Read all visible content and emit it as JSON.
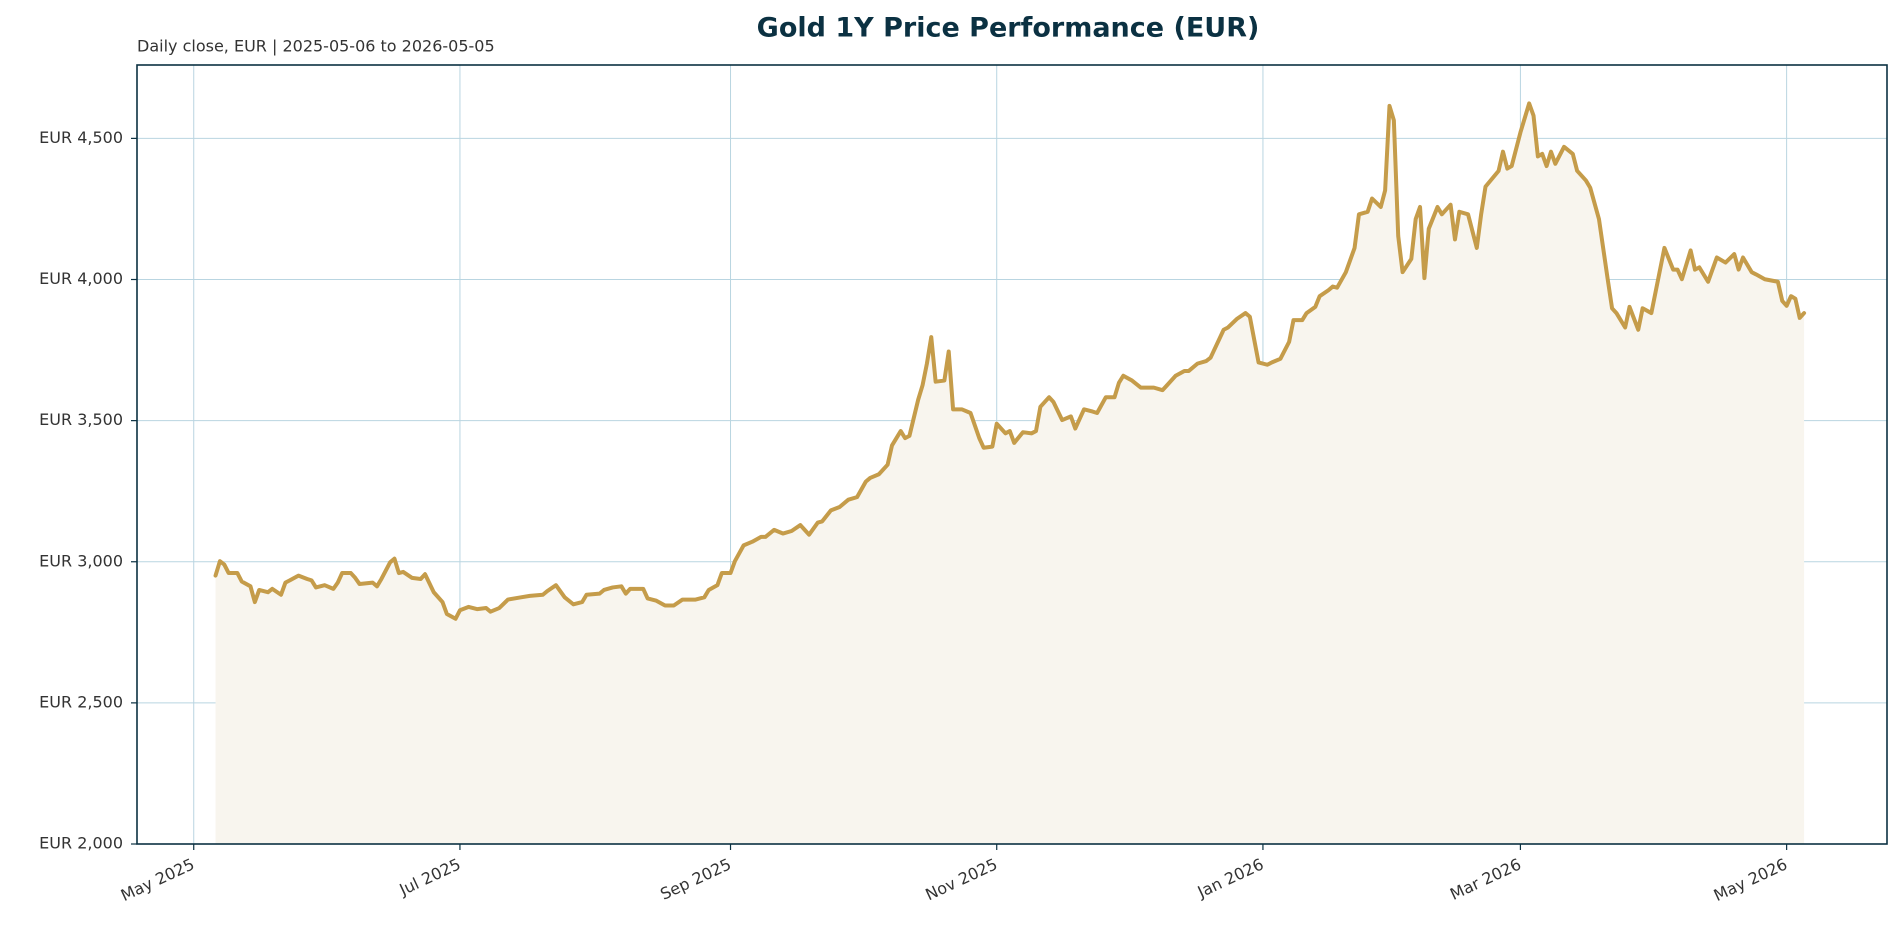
{
  "chart_data": {
    "type": "line",
    "title": "Gold 1Y Price Performance (EUR)",
    "subtitle": "Daily close, EUR | 2025-05-06 to 2026-05-05",
    "x": [
      "2025-05-06",
      "2025-05-07",
      "2025-05-08",
      "2025-05-09",
      "2025-05-11",
      "2025-05-12",
      "2025-05-14",
      "2025-05-15",
      "2025-05-16",
      "2025-05-18",
      "2025-05-19",
      "2025-05-21",
      "2025-05-22",
      "2025-05-23",
      "2025-05-25",
      "2025-05-27",
      "2025-05-28",
      "2025-05-29",
      "2025-05-31",
      "2025-06-02",
      "2025-06-03",
      "2025-06-04",
      "2025-06-06",
      "2025-06-07",
      "2025-06-08",
      "2025-06-11",
      "2025-06-12",
      "2025-06-13",
      "2025-06-15",
      "2025-06-16",
      "2025-06-17",
      "2025-06-18",
      "2025-06-20",
      "2025-06-22",
      "2025-06-23",
      "2025-06-25",
      "2025-06-27",
      "2025-06-28",
      "2025-06-30",
      "2025-07-01",
      "2025-07-03",
      "2025-07-05",
      "2025-07-07",
      "2025-07-08",
      "2025-07-10",
      "2025-07-12",
      "2025-07-15",
      "2025-07-17",
      "2025-07-20",
      "2025-07-21",
      "2025-07-23",
      "2025-07-25",
      "2025-07-27",
      "2025-07-29",
      "2025-07-30",
      "2025-08-02",
      "2025-08-03",
      "2025-08-05",
      "2025-08-07",
      "2025-08-08",
      "2025-08-09",
      "2025-08-12",
      "2025-08-13",
      "2025-08-15",
      "2025-08-17",
      "2025-08-19",
      "2025-08-21",
      "2025-08-24",
      "2025-08-26",
      "2025-08-27",
      "2025-08-29",
      "2025-08-30",
      "2025-09-01",
      "2025-09-02",
      "2025-09-04",
      "2025-09-06",
      "2025-09-08",
      "2025-09-09",
      "2025-09-11",
      "2025-09-13",
      "2025-09-15",
      "2025-09-17",
      "2025-09-18",
      "2025-09-19",
      "2025-09-21",
      "2025-09-22",
      "2025-09-24",
      "2025-09-26",
      "2025-09-28",
      "2025-09-30",
      "2025-10-02",
      "2025-10-03",
      "2025-10-05",
      "2025-10-07",
      "2025-10-08",
      "2025-10-10",
      "2025-10-11",
      "2025-10-12",
      "2025-10-14",
      "2025-10-15",
      "2025-10-16",
      "2025-10-17",
      "2025-10-18",
      "2025-10-20",
      "2025-10-21",
      "2025-10-22",
      "2025-10-24",
      "2025-10-26",
      "2025-10-28",
      "2025-10-29",
      "2025-10-31",
      "2025-11-01",
      "2025-11-03",
      "2025-11-04",
      "2025-11-05",
      "2025-11-07",
      "2025-11-09",
      "2025-11-10",
      "2025-11-11",
      "2025-11-13",
      "2025-11-14",
      "2025-11-16",
      "2025-11-18",
      "2025-11-19",
      "2025-11-21",
      "2025-11-23",
      "2025-11-24",
      "2025-11-26",
      "2025-11-28",
      "2025-11-29",
      "2025-11-30",
      "2025-12-02",
      "2025-12-04",
      "2025-12-05",
      "2025-12-07",
      "2025-12-09",
      "2025-12-10",
      "2025-12-12",
      "2025-12-14",
      "2025-12-15",
      "2025-12-17",
      "2025-12-19",
      "2025-12-20",
      "2025-12-23",
      "2025-12-24",
      "2025-12-26",
      "2025-12-28",
      "2025-12-29",
      "2025-12-31",
      "2026-01-02",
      "2026-01-03",
      "2026-01-05",
      "2026-01-07",
      "2026-01-08",
      "2026-01-10",
      "2026-01-11",
      "2026-01-13",
      "2026-01-14",
      "2026-01-16",
      "2026-01-17",
      "2026-01-18",
      "2026-01-20",
      "2026-01-22",
      "2026-01-23",
      "2026-01-25",
      "2026-01-26",
      "2026-01-28",
      "2026-01-29",
      "2026-01-30",
      "2026-01-31",
      "2026-02-01",
      "2026-02-02",
      "2026-02-04",
      "2026-02-05",
      "2026-02-06",
      "2026-02-07",
      "2026-02-08",
      "2026-02-10",
      "2026-02-11",
      "2026-02-13",
      "2026-02-14",
      "2026-02-15",
      "2026-02-17",
      "2026-02-19",
      "2026-02-20",
      "2026-02-21",
      "2026-02-24",
      "2026-02-25",
      "2026-02-26",
      "2026-02-27",
      "2026-03-01",
      "2026-03-03",
      "2026-03-04",
      "2026-03-05",
      "2026-03-06",
      "2026-03-07",
      "2026-03-08",
      "2026-03-09",
      "2026-03-11",
      "2026-03-13",
      "2026-03-14",
      "2026-03-16",
      "2026-03-17",
      "2026-03-19",
      "2026-03-21",
      "2026-03-22",
      "2026-03-23",
      "2026-03-25",
      "2026-03-26",
      "2026-03-28",
      "2026-03-29",
      "2026-03-31",
      "2026-04-01",
      "2026-04-03",
      "2026-04-05",
      "2026-04-06",
      "2026-04-07",
      "2026-04-09",
      "2026-04-10",
      "2026-04-11",
      "2026-04-13",
      "2026-04-15",
      "2026-04-17",
      "2026-04-19",
      "2026-04-20",
      "2026-04-21",
      "2026-04-23",
      "2026-04-24",
      "2026-04-26",
      "2026-04-29",
      "2026-04-30",
      "2026-05-01",
      "2026-05-02",
      "2026-05-03",
      "2026-05-04",
      "2026-05-05"
    ],
    "values": [
      2951,
      3002,
      2990,
      2960,
      2960,
      2930,
      2913,
      2857,
      2900,
      2892,
      2904,
      2883,
      2926,
      2934,
      2951,
      2939,
      2934,
      2909,
      2917,
      2904,
      2926,
      2960,
      2960,
      2943,
      2921,
      2926,
      2913,
      2939,
      2998,
      3011,
      2960,
      2964,
      2943,
      2939,
      2956,
      2892,
      2857,
      2815,
      2798,
      2828,
      2840,
      2832,
      2836,
      2823,
      2836,
      2866,
      2874,
      2879,
      2883,
      2896,
      2917,
      2874,
      2849,
      2857,
      2883,
      2887,
      2900,
      2909,
      2913,
      2887,
      2904,
      2904,
      2870,
      2862,
      2845,
      2845,
      2866,
      2866,
      2874,
      2900,
      2917,
      2960,
      2960,
      3002,
      3058,
      3071,
      3088,
      3088,
      3113,
      3100,
      3109,
      3130,
      3113,
      3096,
      3139,
      3143,
      3182,
      3194,
      3220,
      3229,
      3284,
      3297,
      3310,
      3344,
      3412,
      3463,
      3438,
      3446,
      3574,
      3625,
      3702,
      3796,
      3638,
      3642,
      3745,
      3540,
      3540,
      3527,
      3438,
      3404,
      3408,
      3489,
      3455,
      3463,
      3421,
      3459,
      3455,
      3463,
      3549,
      3583,
      3566,
      3502,
      3515,
      3472,
      3540,
      3532,
      3527,
      3583,
      3583,
      3634,
      3659,
      3642,
      3617,
      3617,
      3617,
      3608,
      3625,
      3659,
      3676,
      3676,
      3702,
      3711,
      3723,
      3822,
      3830,
      3860,
      3881,
      3868,
      3706,
      3698,
      3706,
      3719,
      3779,
      3856,
      3856,
      3881,
      3903,
      3941,
      3962,
      3975,
      3971,
      4026,
      4112,
      4231,
      4240,
      4287,
      4257,
      4316,
      4615,
      4564,
      4154,
      4026,
      4073,
      4214,
      4257,
      4005,
      4180,
      4257,
      4231,
      4265,
      4142,
      4240,
      4231,
      4112,
      4231,
      4329,
      4385,
      4453,
      4393,
      4402,
      4521,
      4624,
      4581,
      4436,
      4445,
      4402,
      4453,
      4410,
      4470,
      4445,
      4385,
      4351,
      4325,
      4214,
      4001,
      3898,
      3881,
      3830,
      3903,
      3822,
      3898,
      3881,
      3958,
      4112,
      4035,
      4035,
      4001,
      4103,
      4035,
      4043,
      3992,
      4078,
      4060,
      4090,
      4035,
      4078,
      4026,
      4018,
      4001,
      3992,
      3924,
      3907,
      3941,
      3932,
      3864,
      3881
    ],
    "color": "#c59c4a",
    "fill_color": "#f8f5ee",
    "grid": true,
    "xlim": [
      "2025-04-18",
      "2026-05-24"
    ],
    "xticks": [
      {
        "value": "2025-05-01",
        "label": "May 2025"
      },
      {
        "value": "2025-07-01",
        "label": "Jul 2025"
      },
      {
        "value": "2025-09-01",
        "label": "Sep 2025"
      },
      {
        "value": "2025-11-01",
        "label": "Nov 2025"
      },
      {
        "value": "2026-01-01",
        "label": "Jan 2026"
      },
      {
        "value": "2026-03-01",
        "label": "Mar 2026"
      },
      {
        "value": "2026-05-01",
        "label": "May 2026"
      }
    ],
    "ylim": [
      2000,
      4760
    ],
    "yticks": [
      {
        "value": 2000,
        "label": "EUR 2,000"
      },
      {
        "value": 2500,
        "label": "EUR 2,500"
      },
      {
        "value": 3000,
        "label": "EUR 3,000"
      },
      {
        "value": 3500,
        "label": "EUR 3,500"
      },
      {
        "value": 4000,
        "label": "EUR 4,000"
      },
      {
        "value": 4500,
        "label": "EUR 4,500"
      }
    ]
  }
}
